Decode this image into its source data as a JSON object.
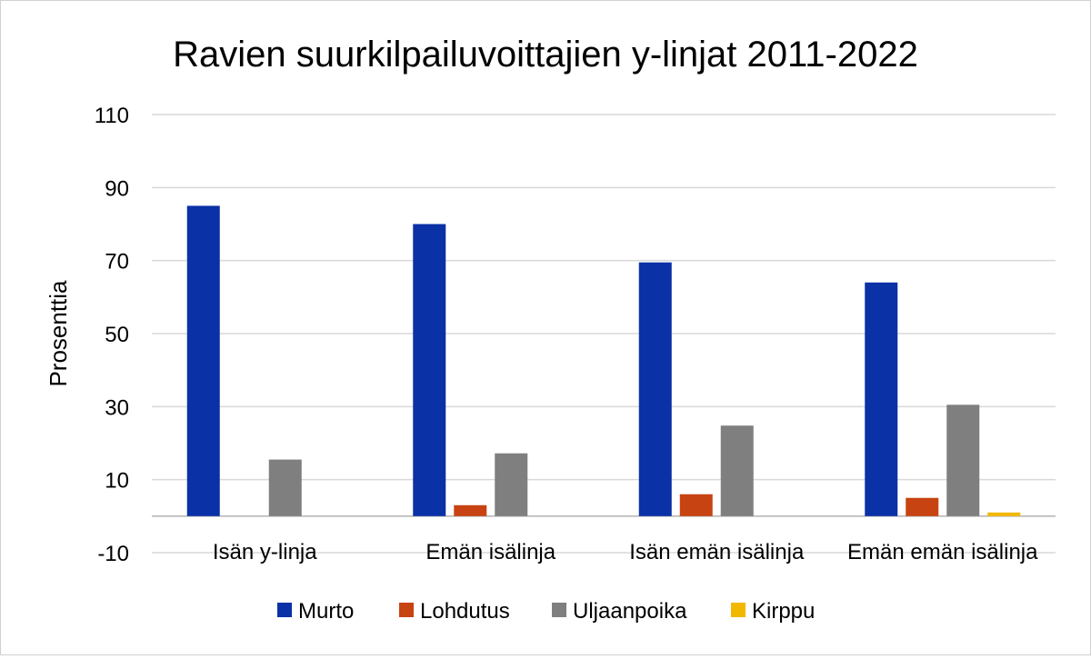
{
  "chart_data": {
    "type": "bar",
    "title": "Ravien suurkilpailuvoittajien y-linjat 2011-2022",
    "xlabel": "",
    "ylabel": "Prosenttia",
    "ylim": [
      -10,
      110
    ],
    "yticks": [
      -10,
      10,
      30,
      50,
      70,
      90,
      110
    ],
    "categories": [
      "Isän y-linja",
      "Emän isälinja",
      "Isän emän isälinja",
      "Emän emän isälinja"
    ],
    "series": [
      {
        "name": "Murto",
        "color": "#0a31a6",
        "values": [
          85,
          80,
          69.5,
          64
        ]
      },
      {
        "name": "Lohdutus",
        "color": "#c84312",
        "values": [
          0,
          3,
          6,
          5
        ]
      },
      {
        "name": "Uljaanpoika",
        "color": "#7f7f7f",
        "values": [
          15.5,
          17.2,
          24.8,
          30.5
        ]
      },
      {
        "name": "Kirppu",
        "color": "#f2b800",
        "values": [
          0,
          0,
          0,
          1
        ]
      }
    ],
    "grid": true,
    "legend": "bottom"
  }
}
